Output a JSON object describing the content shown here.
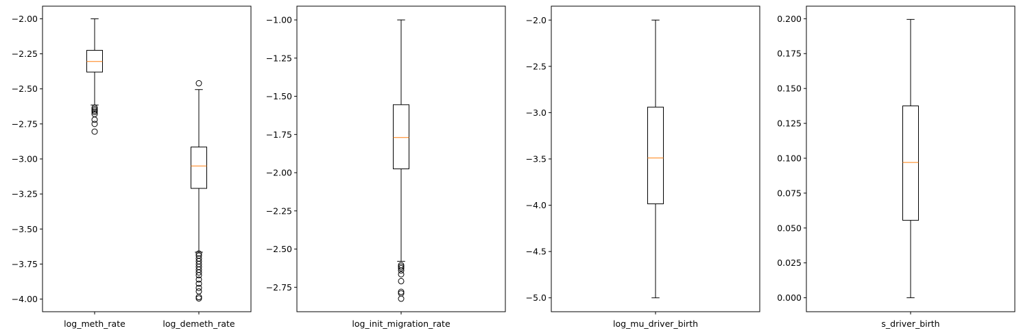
{
  "chart_data": [
    {
      "type": "box",
      "categories": [
        "log_meth_rate",
        "log_demeth_rate"
      ],
      "ylim": [
        -4.09,
        -1.91
      ],
      "yticks": [
        -2.0,
        -2.25,
        -2.5,
        -2.75,
        -3.0,
        -3.25,
        -3.5,
        -3.75,
        -4.0
      ],
      "ytick_labels": [
        "−2.00",
        "−2.25",
        "−2.50",
        "−2.75",
        "−3.00",
        "−3.25",
        "−3.50",
        "−3.75",
        "−4.00"
      ],
      "boxes": [
        {
          "name": "log_meth_rate",
          "whisker_low": -2.615,
          "q1": -2.38,
          "median": -2.305,
          "q3": -2.225,
          "whisker_high": -2.0,
          "outliers": [
            -2.635,
            -2.645,
            -2.655,
            -2.665,
            -2.68,
            -2.72,
            -2.75,
            -2.805
          ]
        },
        {
          "name": "log_demeth_rate",
          "whisker_low": -3.665,
          "q1": -3.21,
          "median": -3.05,
          "q3": -2.915,
          "whisker_high": -2.505,
          "outliers": [
            -2.46,
            -3.675,
            -3.69,
            -3.71,
            -3.73,
            -3.75,
            -3.77,
            -3.79,
            -3.81,
            -3.83,
            -3.86,
            -3.89,
            -3.92,
            -3.945,
            -3.985,
            -3.995
          ]
        }
      ],
      "grid": false
    },
    {
      "type": "box",
      "categories": [
        "log_init_migration_rate"
      ],
      "ylim": [
        -2.91,
        -0.91
      ],
      "yticks": [
        -1.0,
        -1.25,
        -1.5,
        -1.75,
        -2.0,
        -2.25,
        -2.5,
        -2.75
      ],
      "ytick_labels": [
        "−1.00",
        "−1.25",
        "−1.50",
        "−1.75",
        "−2.00",
        "−2.25",
        "−2.50",
        "−2.75"
      ],
      "boxes": [
        {
          "name": "log_init_migration_rate",
          "whisker_low": -2.58,
          "q1": -1.975,
          "median": -1.77,
          "q3": -1.555,
          "whisker_high": -1.0,
          "outliers": [
            -2.605,
            -2.615,
            -2.625,
            -2.64,
            -2.665,
            -2.71,
            -2.78,
            -2.79,
            -2.825
          ]
        }
      ],
      "grid": false
    },
    {
      "type": "box",
      "categories": [
        "log_mu_driver_birth"
      ],
      "ylim": [
        -5.15,
        -1.85
      ],
      "yticks": [
        -2.0,
        -2.5,
        -3.0,
        -3.5,
        -4.0,
        -4.5,
        -5.0
      ],
      "ytick_labels": [
        "−2.0",
        "−2.5",
        "−3.0",
        "−3.5",
        "−4.0",
        "−4.5",
        "−5.0"
      ],
      "boxes": [
        {
          "name": "log_mu_driver_birth",
          "whisker_low": -5.0,
          "q1": -3.985,
          "median": -3.49,
          "q3": -2.94,
          "whisker_high": -2.0,
          "outliers": []
        }
      ],
      "grid": false
    },
    {
      "type": "box",
      "categories": [
        "s_driver_birth"
      ],
      "ylim": [
        -0.01,
        0.209
      ],
      "yticks": [
        0.2,
        0.175,
        0.15,
        0.125,
        0.1,
        0.075,
        0.05,
        0.025,
        0.0
      ],
      "ytick_labels": [
        "0.200",
        "0.175",
        "0.150",
        "0.125",
        "0.100",
        "0.075",
        "0.050",
        "0.025",
        "0.000"
      ],
      "boxes": [
        {
          "name": "s_driver_birth",
          "whisker_low": 0.0,
          "q1": 0.0555,
          "median": 0.097,
          "q3": 0.1375,
          "whisker_high": 0.1995,
          "outliers": []
        }
      ],
      "grid": false
    }
  ],
  "colors": {
    "box": "#000000",
    "median": "#ff7f0e",
    "background": "#ffffff"
  }
}
